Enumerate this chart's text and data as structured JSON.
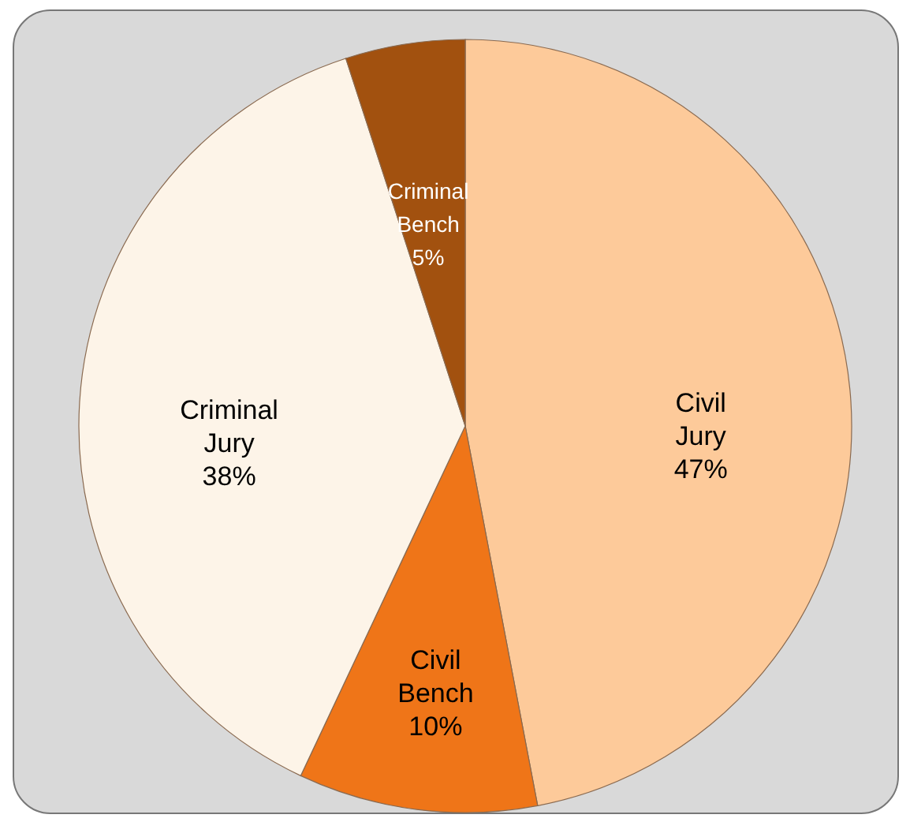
{
  "chart_data": {
    "type": "pie",
    "categories": [
      "Civil Jury",
      "Civil Bench",
      "Criminal Jury",
      "Criminal Bench"
    ],
    "values": [
      47,
      10,
      38,
      5
    ],
    "colors": [
      "#fdca9a",
      "#ef7518",
      "#fdf4e8",
      "#a2510f"
    ],
    "value_labels": [
      "47%",
      "10%",
      "38%",
      "5%"
    ]
  }
}
